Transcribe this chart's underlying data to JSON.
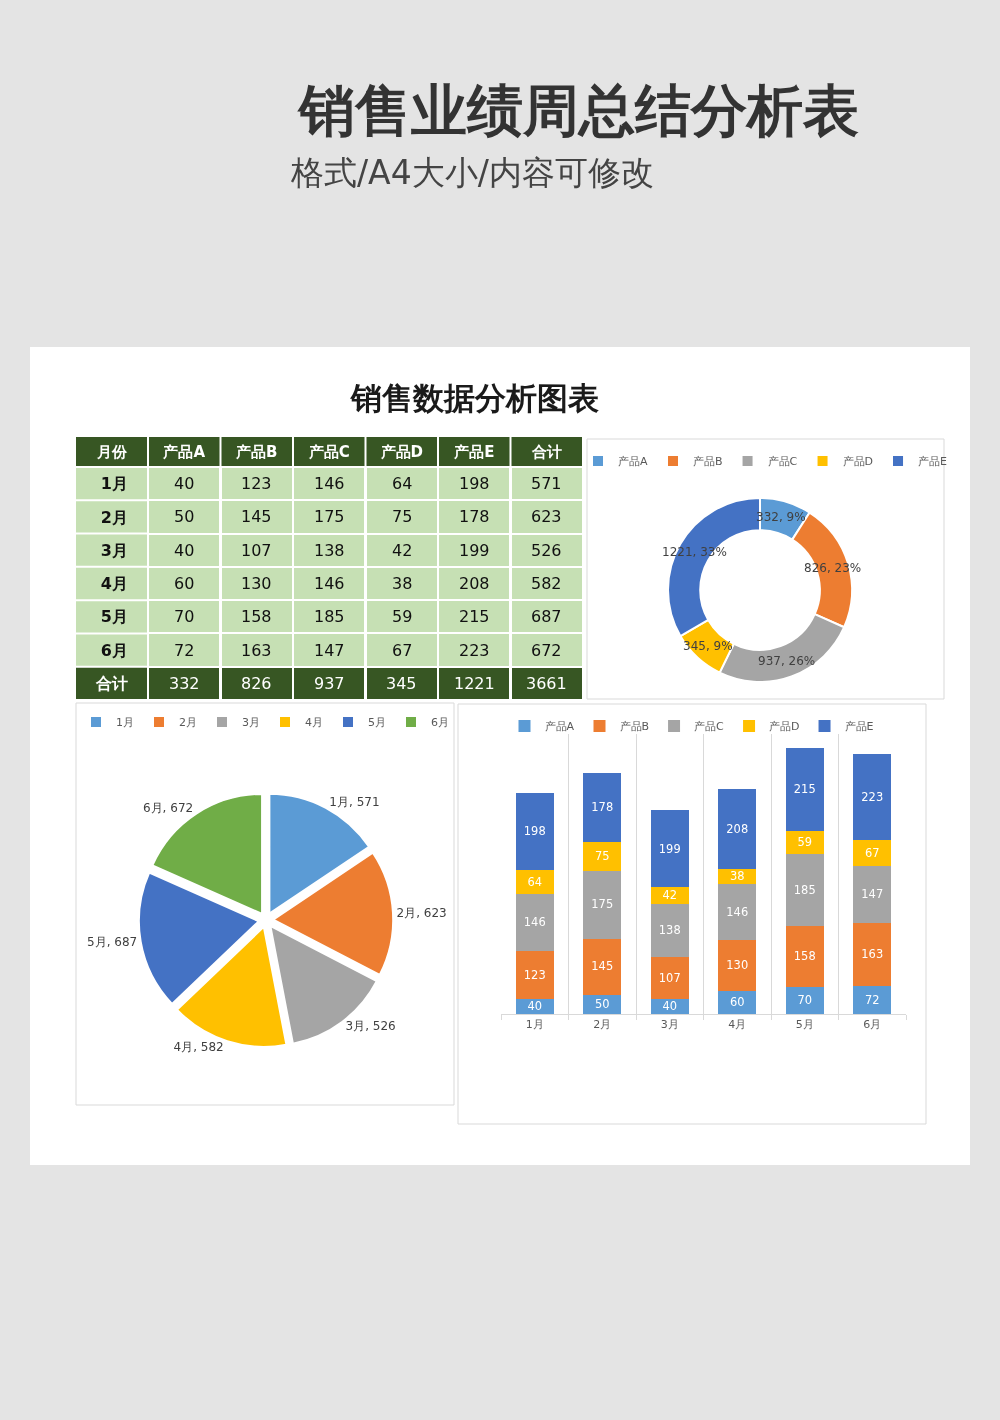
{
  "chart_data": [
    {
      "type": "other",
      "title": "销售业绩周总结分析表",
      "subtitle": "格式/A4大小/内容可修改"
    },
    {
      "type": "heatmap",
      "title": "销售数据分析图表",
      "ylabel": "月份",
      "categories": [
        "产品A",
        "产品B",
        "产品C",
        "产品D",
        "产品E",
        "合计"
      ],
      "y_categories": [
        "1月",
        "2月",
        "3月",
        "4月",
        "5月",
        "6月",
        "合计"
      ],
      "cells": [
        [
          40,
          123,
          146,
          64,
          198,
          571
        ],
        [
          50,
          145,
          175,
          75,
          178,
          623
        ],
        [
          40,
          107,
          138,
          42,
          199,
          526
        ],
        [
          60,
          130,
          146,
          38,
          208,
          582
        ],
        [
          70,
          158,
          185,
          59,
          215,
          687
        ],
        [
          72,
          163,
          147,
          67,
          223,
          672
        ],
        [
          332,
          826,
          937,
          345,
          1221,
          3661
        ]
      ],
      "data_labels": true
    },
    {
      "type": "donut",
      "categories": [
        "产品A",
        "产品B",
        "产品C",
        "产品D",
        "产品E"
      ],
      "values": [
        332,
        826,
        937,
        345,
        1221
      ],
      "colors": [
        "#5b9bd5",
        "#ed7d31",
        "#a5a5a5",
        "#ffc000",
        "#4472c4"
      ],
      "value_labels": [
        "332, 9%",
        "826, 23%",
        "937, 26%",
        "345, 9%",
        "1221, 33%"
      ],
      "legend": "top"
    },
    {
      "type": "pie",
      "categories": [
        "1月",
        "2月",
        "3月",
        "4月",
        "5月",
        "6月"
      ],
      "values": [
        571,
        623,
        526,
        582,
        687,
        672
      ],
      "colors": [
        "#5b9bd5",
        "#ed7d31",
        "#a5a5a5",
        "#ffc000",
        "#4472c4",
        "#70ad47"
      ],
      "value_labels": [
        "1月, 571",
        "2月, 623",
        "3月, 526",
        "4月, 582",
        "5月, 687",
        "6月, 672"
      ],
      "legend": "top"
    },
    {
      "type": "bar",
      "stacked": true,
      "categories": [
        "1月",
        "2月",
        "3月",
        "4月",
        "5月",
        "6月"
      ],
      "series": [
        {
          "name": "产品A",
          "color": "#5b9bd5",
          "values": [
            40,
            50,
            40,
            60,
            70,
            72
          ]
        },
        {
          "name": "产品B",
          "color": "#ed7d31",
          "values": [
            123,
            145,
            107,
            130,
            158,
            163
          ]
        },
        {
          "name": "产品C",
          "color": "#a5a5a5",
          "values": [
            146,
            175,
            138,
            146,
            185,
            147
          ]
        },
        {
          "name": "产品D",
          "color": "#ffc000",
          "values": [
            64,
            75,
            42,
            38,
            59,
            67
          ]
        },
        {
          "name": "产品E",
          "color": "#4472c4",
          "values": [
            198,
            178,
            199,
            208,
            215,
            223
          ]
        }
      ],
      "data_labels": true,
      "legend": "top",
      "grid": "x",
      "tick_labels": "x"
    }
  ]
}
